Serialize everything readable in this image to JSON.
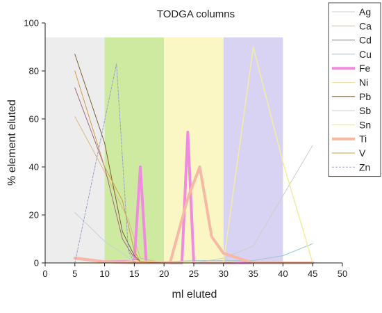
{
  "chart_data": {
    "type": "line",
    "title": "TODGA columns",
    "xlabel": "ml eluted",
    "ylabel": "% element eluted",
    "xlim": [
      0,
      50
    ],
    "ylim": [
      0,
      100
    ],
    "x_ticks": [
      "0",
      "5",
      "10",
      "15",
      "20",
      "25",
      "30",
      "35",
      "40",
      "45",
      "50"
    ],
    "y_ticks": [
      "0",
      "20",
      "40",
      "60",
      "80",
      "100"
    ],
    "grid": false,
    "legend_position": "right",
    "bands": [
      {
        "x": [
          0,
          10
        ],
        "y_top": 94,
        "color": "#ededed"
      },
      {
        "x": [
          10,
          20
        ],
        "y_top": 94,
        "color": "#cdeaa0"
      },
      {
        "x": [
          20,
          30
        ],
        "y_top": 94,
        "color": "#fbf7c4"
      },
      {
        "x": [
          30,
          40
        ],
        "y_top": 94,
        "color": "#d8d3f3"
      }
    ],
    "series": [
      {
        "name": "Ag",
        "color": "#c8d0d8",
        "width": 1,
        "dash": "",
        "x": [
          5,
          10,
          15,
          20,
          25,
          30,
          35,
          40,
          45
        ],
        "y": [
          21,
          9,
          0.5,
          0,
          0,
          0,
          0,
          0,
          0
        ]
      },
      {
        "name": "Ca",
        "color": "#d7b98a",
        "width": 1,
        "dash": "",
        "x": [
          5,
          10,
          14,
          16,
          20,
          25,
          30,
          35,
          40,
          45
        ],
        "y": [
          61,
          38,
          18,
          2,
          0,
          0,
          0,
          0,
          0,
          0
        ]
      },
      {
        "name": "Cd",
        "color": "#a06a80",
        "width": 1,
        "dash": "",
        "x": [
          5,
          10,
          13,
          15,
          16,
          20,
          25,
          30,
          35,
          40,
          45
        ],
        "y": [
          73,
          40,
          10,
          2,
          0.5,
          0,
          0,
          0,
          0,
          0,
          0
        ]
      },
      {
        "name": "Cu",
        "color": "#9ec6d2",
        "width": 1,
        "dash": "",
        "x": [
          5,
          10,
          15,
          20,
          25,
          30,
          35,
          40,
          45
        ],
        "y": [
          0,
          0,
          0.5,
          0.5,
          1,
          1,
          1,
          3,
          8
        ]
      },
      {
        "name": "Fe",
        "color": "#f08ce0",
        "width": 4,
        "dash": "",
        "x": [
          5,
          10,
          15,
          16,
          17,
          18,
          20,
          22,
          23,
          24,
          25,
          26,
          30,
          35,
          40,
          45
        ],
        "y": [
          2,
          0.5,
          0.5,
          40,
          0.5,
          0,
          0,
          0,
          0,
          54.5,
          0,
          0,
          0,
          0,
          0,
          0
        ]
      },
      {
        "name": "Ni",
        "color": "#f4dca0",
        "width": 1,
        "dash": "",
        "x": [
          5,
          10,
          15,
          20,
          25,
          30,
          35,
          40,
          45
        ],
        "y": [
          0,
          0,
          1,
          0.5,
          0.5,
          0.5,
          0,
          0,
          0
        ]
      },
      {
        "name": "Pb",
        "color": "#7a6236",
        "width": 1,
        "dash": "",
        "x": [
          5,
          10,
          13,
          15,
          16,
          20,
          25,
          30,
          35,
          40,
          45
        ],
        "y": [
          87,
          50,
          13,
          3,
          0.5,
          0,
          0,
          0,
          0,
          0,
          0
        ]
      },
      {
        "name": "Sb",
        "color": "#c8cfc8",
        "width": 1,
        "dash": "",
        "x": [
          5,
          10,
          15,
          20,
          25,
          30,
          35,
          40,
          45
        ],
        "y": [
          0,
          0,
          0,
          0,
          0,
          2,
          7,
          28,
          49
        ]
      },
      {
        "name": "Sn",
        "color": "#f1ee9e",
        "width": 1.5,
        "dash": "",
        "x": [
          5,
          10,
          15,
          20,
          25,
          30,
          35,
          40,
          45
        ],
        "y": [
          0,
          0,
          0,
          0,
          0,
          0,
          90,
          42,
          0
        ]
      },
      {
        "name": "Ti",
        "color": "#f5b9a5",
        "width": 4,
        "dash": "",
        "x": [
          5,
          10,
          15,
          20,
          21,
          24,
          26,
          28,
          30,
          35,
          40,
          45
        ],
        "y": [
          2,
          0.5,
          0,
          0,
          0,
          27,
          40,
          11,
          4,
          0,
          0,
          0
        ]
      },
      {
        "name": "V",
        "color": "#d09b48",
        "width": 1,
        "dash": "",
        "x": [
          5,
          10,
          13,
          15,
          16,
          20,
          25,
          30,
          35,
          40,
          45
        ],
        "y": [
          80,
          40,
          26,
          5,
          0.5,
          0,
          0,
          0,
          0,
          0,
          0
        ]
      },
      {
        "name": "Zn",
        "color": "#9aa0c8",
        "width": 1,
        "dash": "3,2",
        "x": [
          5,
          12,
          14,
          15,
          20,
          25,
          30,
          35,
          40,
          45
        ],
        "y": [
          0,
          83,
          5,
          0,
          0,
          0,
          0,
          0,
          0,
          0
        ]
      }
    ]
  }
}
